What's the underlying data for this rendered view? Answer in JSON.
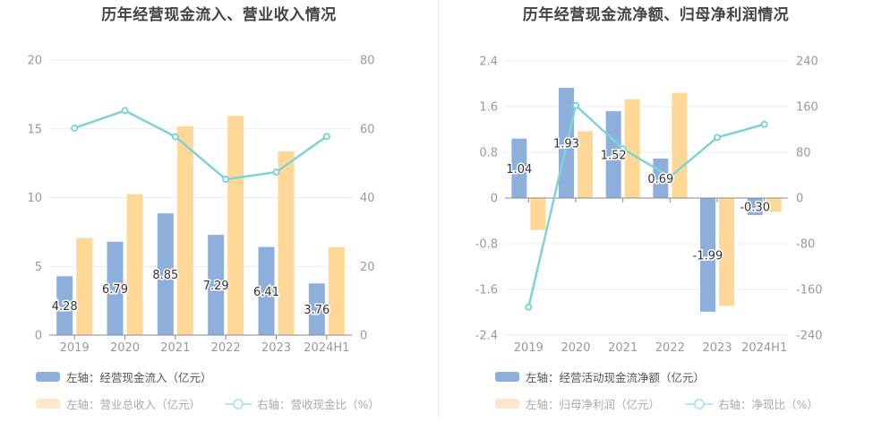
{
  "colors": {
    "blue_bar": "#8eaedb",
    "orange_bar": "#ffd898",
    "line": "#7fd2d6",
    "grid": "#e6ebf5",
    "axis_text": "#999999",
    "legend_active_text": "#555555",
    "legend_dim_text": "#aaaaaa",
    "legend_dim_orange": "#fde8c8",
    "legend_dim_line": "#b6e6e8"
  },
  "chart_data": [
    {
      "type": "bar+line",
      "title": "历年经营现金流入、营业收入情况",
      "categories": [
        "2019",
        "2020",
        "2021",
        "2022",
        "2023",
        "2024H1"
      ],
      "left_axis": {
        "ylim": [
          0,
          20
        ],
        "ticks": [
          "0",
          "5",
          "10",
          "15",
          "20"
        ]
      },
      "right_axis": {
        "ylim": [
          0,
          80
        ],
        "ticks": [
          "0",
          "20",
          "40",
          "60",
          "80"
        ]
      },
      "grid": true,
      "legend_position": "bottom-left",
      "series": [
        {
          "name": "左轴：经营现金流入（亿元）",
          "type": "bar",
          "axis": "left",
          "values": [
            4.28,
            6.79,
            8.85,
            7.29,
            6.41,
            3.76
          ],
          "labels": [
            "4.28",
            "6.79",
            "8.85",
            "7.29",
            "6.41",
            "3.76"
          ]
        },
        {
          "name": "左轴：营业总收入（亿元）",
          "type": "bar",
          "axis": "left",
          "values": [
            7.06,
            10.25,
            15.18,
            15.94,
            13.36,
            6.4
          ]
        },
        {
          "name": "右轴：营收现金比（%）",
          "type": "line",
          "axis": "right",
          "values": [
            60.2,
            65.3,
            57.7,
            45.3,
            47.4,
            57.8
          ]
        }
      ]
    },
    {
      "type": "bar+line",
      "title": "历年经营现金流净额、归母净利润情况",
      "categories": [
        "2019",
        "2020",
        "2021",
        "2022",
        "2023",
        "2024H1"
      ],
      "left_axis": {
        "ylim": [
          -2.4,
          2.4
        ],
        "ticks": [
          "-2.4",
          "-1.6",
          "-0.8",
          "0",
          "0.8",
          "1.6",
          "2.4"
        ]
      },
      "right_axis": {
        "ylim": [
          -240,
          240
        ],
        "ticks": [
          "-240",
          "-160",
          "-80",
          "0",
          "80",
          "160",
          "240"
        ]
      },
      "grid": true,
      "legend_position": "bottom-left",
      "series": [
        {
          "name": "左轴：经营活动现金流净额（亿元）",
          "type": "bar",
          "axis": "left",
          "values": [
            1.04,
            1.93,
            1.52,
            0.69,
            -1.99,
            -0.3
          ],
          "labels": [
            "1.04",
            "1.93",
            "1.52",
            "0.69",
            "-1.99",
            "-0.30"
          ]
        },
        {
          "name": "左轴：归母净利润（亿元）",
          "type": "bar",
          "axis": "left",
          "values": [
            -0.56,
            1.17,
            1.73,
            1.84,
            -1.89,
            -0.24
          ]
        },
        {
          "name": "右轴：净现比（%）",
          "type": "line",
          "axis": "right",
          "values": [
            -191,
            162,
            86,
            37,
            106,
            129
          ]
        }
      ]
    }
  ]
}
